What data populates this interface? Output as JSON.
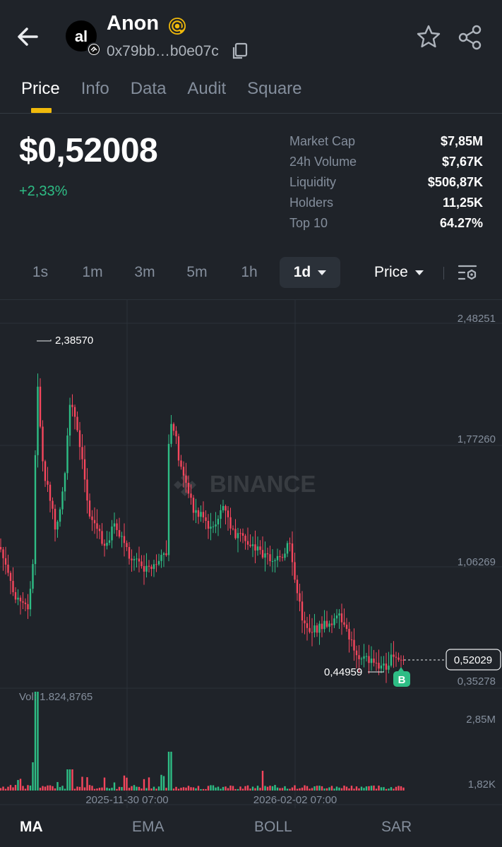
{
  "header": {
    "token_name": "Anon",
    "address": "0x79bb…b0e07c",
    "avatar_text": "al"
  },
  "tabs": [
    {
      "label": "Price",
      "active": true
    },
    {
      "label": "Info",
      "active": false
    },
    {
      "label": "Data",
      "active": false
    },
    {
      "label": "Audit",
      "active": false
    },
    {
      "label": "Square",
      "active": false
    }
  ],
  "price": {
    "value": "$0,52008",
    "change": "+2,33%"
  },
  "stats": [
    {
      "label": "Market Cap",
      "value": "$7,85M"
    },
    {
      "label": "24h Volume",
      "value": "$7,67K"
    },
    {
      "label": "Liquidity",
      "value": "$506,87K"
    },
    {
      "label": "Holders",
      "value": "11,25K"
    },
    {
      "label": "Top 10",
      "value": "64.27%"
    }
  ],
  "intervals": [
    "1s",
    "1m",
    "3m",
    "5m",
    "1h",
    "1d"
  ],
  "active_interval": "1d",
  "price_type": "Price",
  "chart": {
    "watermark": "BINANCE",
    "price_axis": [
      "2,48251",
      "1,77260",
      "1,06269",
      "0,35278"
    ],
    "high_label": "2,38570",
    "low_label": "0,44959",
    "current_label": "0,52029",
    "buy_marker": "B",
    "volume_label": "Vol: 1.824,8765",
    "volume_axis": [
      "2,85M",
      "1,82K"
    ],
    "date_labels": [
      "2025-11-30 07:00",
      "2026-02-02 07:00"
    ],
    "colors": {
      "up": "#2ebd85",
      "down": "#f6465d",
      "accent": "#f0b90b"
    }
  },
  "indicators": [
    {
      "label": "MA",
      "active": true
    },
    {
      "label": "EMA",
      "active": false
    },
    {
      "label": "BOLL",
      "active": false
    },
    {
      "label": "SAR",
      "active": false
    }
  ]
}
